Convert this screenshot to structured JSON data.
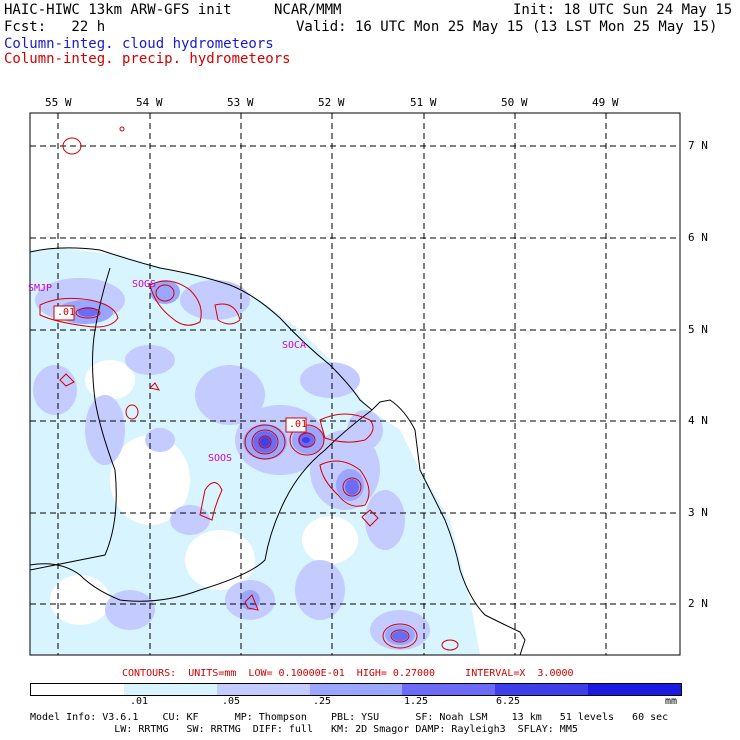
{
  "header": {
    "title_left": "HAIC-HIWC 13km ARW-GFS init",
    "title_org": "NCAR/MMM",
    "init_text": "Init: 18 UTC Sun 24 May 15",
    "fcst_text": "Fcst:   22 h",
    "valid_text": "Valid: 16 UTC Mon 25 May 15 (13 LST Mon 25 May 15)",
    "line_cloud": "Column-integ. cloud hydrometeors",
    "line_precip": "Column-integ. precip. hydrometeors",
    "color_cloud": "#1a1acc",
    "color_precip": "#d40000"
  },
  "map": {
    "lon_labels": [
      "55 W",
      "54 W",
      "53 W",
      "52 W",
      "51 W",
      "50 W",
      "49 W"
    ],
    "lat_labels": [
      "7 N",
      "6 N",
      "5 N",
      "4 N",
      "3 N",
      "2 N"
    ],
    "stations": [
      "SMJP",
      "SOGS",
      "SOCA",
      "SOOS"
    ],
    "contour_labels": [
      ".01",
      ".01"
    ]
  },
  "contours_info": "CONTOURS:  UNITS=mm  LOW= 0.10000E-01  HIGH= 0.27000     INTERVAL=X  3.0000",
  "legend": {
    "labels": [
      ".01",
      ".05",
      ".25",
      "1.25",
      "6.25",
      "mm"
    ],
    "colors": [
      "#ffffff",
      "#d8f4ff",
      "#c4ccff",
      "#9aa6ff",
      "#6b6bf5",
      "#3e3eeb",
      "#1a1ae0"
    ]
  },
  "footer": {
    "line1": "Model Info: V3.6.1    CU: KF      MP: Thompson    PBL: YSU      SF: Noah LSM    13 km   51 levels   60 sec",
    "line2": "              LW: RRTMG   SW: RRTMG  DIFF: full   KM: 2D Smagor DAMP: Rayleigh3  SFLAY: MM5"
  }
}
